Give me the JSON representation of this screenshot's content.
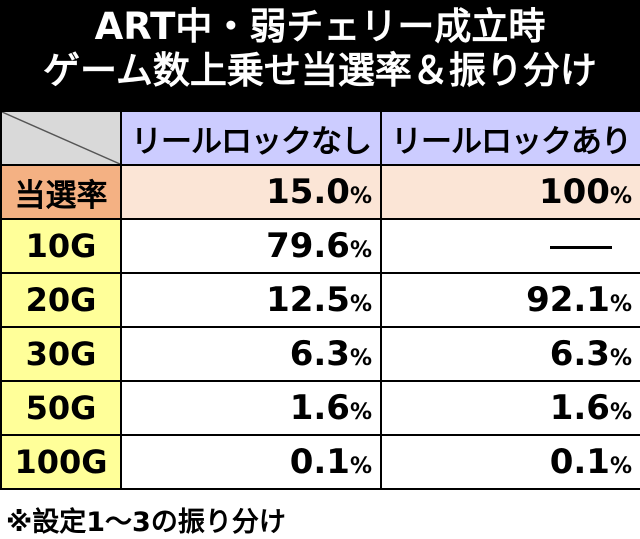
{
  "title": {
    "line1": "ART中・弱チェリー成立時",
    "line2": "ゲーム数上乗せ当選率＆振り分け"
  },
  "table": {
    "columns": [
      "リールロックなし",
      "リールロックあり"
    ],
    "rate_row": {
      "label": "当選率",
      "values": [
        {
          "num": "15.0",
          "unit": "%"
        },
        {
          "num": "100",
          "unit": "%"
        }
      ]
    },
    "rows": [
      {
        "label": "10G",
        "values": [
          {
            "num": "79.6",
            "unit": "%"
          },
          {
            "num": "—",
            "unit": ""
          }
        ]
      },
      {
        "label": "20G",
        "values": [
          {
            "num": "12.5",
            "unit": "%"
          },
          {
            "num": "92.1",
            "unit": "%"
          }
        ]
      },
      {
        "label": "30G",
        "values": [
          {
            "num": "6.3",
            "unit": "%"
          },
          {
            "num": "6.3",
            "unit": "%"
          }
        ]
      },
      {
        "label": "50G",
        "values": [
          {
            "num": "1.6",
            "unit": "%"
          },
          {
            "num": "1.6",
            "unit": "%"
          }
        ]
      },
      {
        "label": "100G",
        "values": [
          {
            "num": "0.1",
            "unit": "%"
          },
          {
            "num": "0.1",
            "unit": "%"
          }
        ]
      }
    ]
  },
  "footnote": "※設定1～3の振り分け",
  "colors": {
    "header_bg": "#000000",
    "column_header_bg": "#ccccff",
    "rate_label_bg": "#f4b183",
    "rate_value_bg": "#fbe5d6",
    "row_label_bg": "#ffff99",
    "corner_bg": "#d9d9d9"
  }
}
